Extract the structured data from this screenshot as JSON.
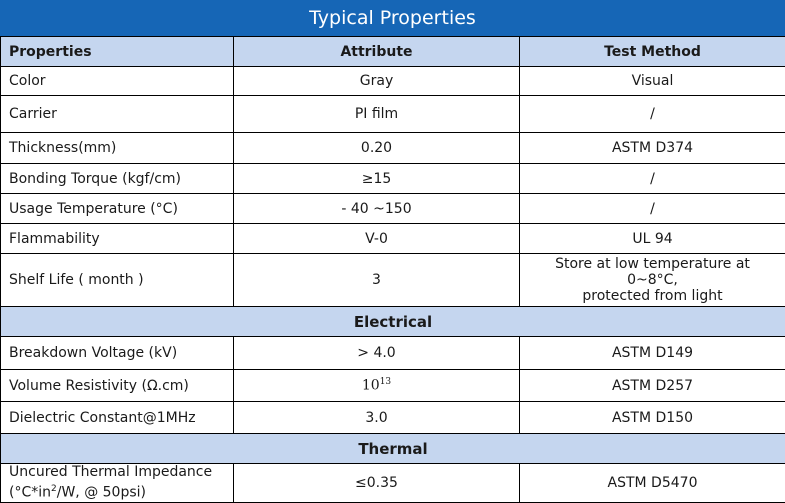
{
  "title": "Typical Properties",
  "headers": {
    "properties": "Properties",
    "attribute": "Attribute",
    "test_method": "Test Method"
  },
  "general": [
    {
      "property": "Color",
      "attribute": "Gray",
      "method": "Visual"
    },
    {
      "property": "Carrier",
      "attribute": "PI film",
      "method": "/"
    },
    {
      "property": "Thickness(mm)",
      "attribute": "0.20",
      "method": "ASTM D374"
    },
    {
      "property": "Bonding Torque (kgf/cm)",
      "attribute": "≥15",
      "method": "/"
    },
    {
      "property": "Usage Temperature (°C)",
      "attribute": "- 40 ~150",
      "method": "/"
    },
    {
      "property": "Flammability",
      "attribute": "V-0",
      "method": "UL 94"
    },
    {
      "property": "Shelf Life ( month )",
      "attribute": "3",
      "method_line1": "Store at low temperature at 0~8°C,",
      "method_line2": "protected from light"
    }
  ],
  "electrical": {
    "heading": "Electrical",
    "rows": [
      {
        "property": "Breakdown Voltage (kV)",
        "attribute": "> 4.0",
        "method": "ASTM D149"
      },
      {
        "property": "Volume Resistivity (Ω.cm)",
        "attribute_base": "10",
        "attribute_exp": "13",
        "method": "ASTM D257"
      },
      {
        "property": "Dielectric Constant@1MHz",
        "attribute": "3.0",
        "method": "ASTM D150"
      }
    ]
  },
  "thermal": {
    "heading": "Thermal",
    "rows": [
      {
        "property_line1": "Uncured Thermal Impedance",
        "property_line2a": "(°C*in",
        "property_exp": "2",
        "property_line2b": "/W, @ 50psi)",
        "attribute": "≤0.35",
        "method": "ASTM D5470"
      }
    ]
  },
  "colors": {
    "title_bar": "#1666b6",
    "header_fill": "#c5d6ef",
    "border": "#000000"
  }
}
